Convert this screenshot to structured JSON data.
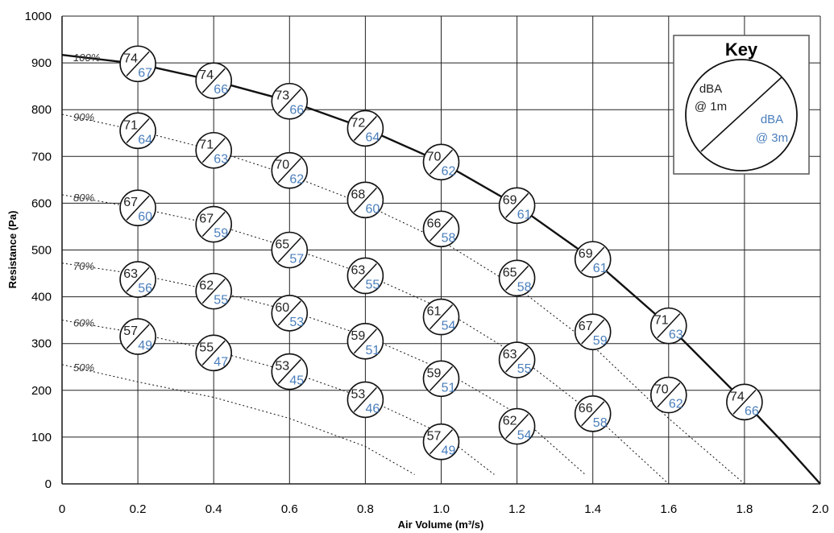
{
  "chart_data": {
    "type": "line",
    "xlabel": "Air Volume (m³/s)",
    "ylabel": "Resistance (Pa)",
    "xlim": [
      0,
      2.0
    ],
    "ylim": [
      0,
      1000
    ],
    "x_ticks": [
      "0",
      "0.2",
      "0.4",
      "0.6",
      "0.8",
      "1.0",
      "1.2",
      "1.4",
      "1.6",
      "1.8",
      "2.0"
    ],
    "y_ticks": [
      "0",
      "100",
      "200",
      "300",
      "400",
      "500",
      "600",
      "700",
      "800",
      "900",
      "1000"
    ],
    "grid": true,
    "series": [
      {
        "name": "100%",
        "style": "solid",
        "x": [
          0,
          0.2,
          0.4,
          0.6,
          0.8,
          1.0,
          1.2,
          1.4,
          1.6,
          1.8,
          1.9,
          2.0
        ],
        "y": [
          917,
          898,
          862,
          818,
          760,
          688,
          595,
          480,
          338,
          175,
          90,
          0
        ]
      },
      {
        "name": "90%",
        "style": "dotted",
        "x": [
          0,
          0.2,
          0.4,
          0.6,
          0.8,
          1.0,
          1.2,
          1.4,
          1.6,
          1.8
        ],
        "y": [
          790,
          755,
          713,
          660,
          597,
          520,
          420,
          295,
          140,
          0
        ]
      },
      {
        "name": "80%",
        "style": "dotted",
        "x": [
          0,
          0.2,
          0.4,
          0.6,
          0.8,
          1.0,
          1.2,
          1.4,
          1.6
        ],
        "y": [
          618,
          590,
          555,
          505,
          448,
          375,
          275,
          150,
          0
        ]
      },
      {
        "name": "70%",
        "style": "dotted",
        "x": [
          0,
          0.2,
          0.4,
          0.6,
          0.8,
          1.0,
          1.2,
          1.38
        ],
        "y": [
          472,
          448,
          413,
          370,
          316,
          245,
          150,
          20
        ]
      },
      {
        "name": "60%",
        "style": "dotted",
        "x": [
          0,
          0.2,
          0.4,
          0.6,
          0.8,
          1.0,
          1.14
        ],
        "y": [
          350,
          322,
          285,
          240,
          183,
          108,
          20
        ]
      },
      {
        "name": "50%",
        "style": "dotted",
        "x": [
          0,
          0.2,
          0.4,
          0.6,
          0.8,
          0.93
        ],
        "y": [
          255,
          218,
          185,
          140,
          80,
          20
        ]
      }
    ],
    "points": [
      {
        "x": 0.2,
        "y": 898,
        "top": "74",
        "bottom": "67"
      },
      {
        "x": 0.4,
        "y": 862,
        "top": "74",
        "bottom": "66"
      },
      {
        "x": 0.6,
        "y": 818,
        "top": "73",
        "bottom": "66"
      },
      {
        "x": 0.8,
        "y": 760,
        "top": "72",
        "bottom": "64"
      },
      {
        "x": 1.0,
        "y": 688,
        "top": "70",
        "bottom": "62"
      },
      {
        "x": 1.2,
        "y": 595,
        "top": "69",
        "bottom": "61"
      },
      {
        "x": 1.4,
        "y": 480,
        "top": "69",
        "bottom": "61"
      },
      {
        "x": 1.6,
        "y": 338,
        "top": "71",
        "bottom": "63"
      },
      {
        "x": 1.8,
        "y": 175,
        "top": "74",
        "bottom": "66"
      },
      {
        "x": 0.2,
        "y": 755,
        "top": "71",
        "bottom": "64"
      },
      {
        "x": 0.4,
        "y": 713,
        "top": "71",
        "bottom": "63"
      },
      {
        "x": 0.6,
        "y": 670,
        "top": "70",
        "bottom": "62"
      },
      {
        "x": 0.8,
        "y": 607,
        "top": "68",
        "bottom": "60"
      },
      {
        "x": 1.0,
        "y": 545,
        "top": "66",
        "bottom": "58"
      },
      {
        "x": 1.2,
        "y": 440,
        "top": "65",
        "bottom": "58"
      },
      {
        "x": 1.4,
        "y": 325,
        "top": "67",
        "bottom": "59"
      },
      {
        "x": 1.6,
        "y": 190,
        "top": "70",
        "bottom": "62"
      },
      {
        "x": 0.2,
        "y": 590,
        "top": "67",
        "bottom": "60"
      },
      {
        "x": 0.4,
        "y": 555,
        "top": "67",
        "bottom": "59"
      },
      {
        "x": 0.6,
        "y": 500,
        "top": "65",
        "bottom": "57"
      },
      {
        "x": 0.8,
        "y": 445,
        "top": "63",
        "bottom": "55"
      },
      {
        "x": 1.0,
        "y": 357,
        "top": "61",
        "bottom": "54"
      },
      {
        "x": 1.2,
        "y": 265,
        "top": "63",
        "bottom": "55"
      },
      {
        "x": 1.4,
        "y": 150,
        "top": "66",
        "bottom": "58"
      },
      {
        "x": 1.2,
        "y": 123,
        "top": "62",
        "bottom": "54"
      },
      {
        "x": 0.2,
        "y": 437,
        "top": "63",
        "bottom": "56"
      },
      {
        "x": 0.4,
        "y": 412,
        "top": "62",
        "bottom": "55"
      },
      {
        "x": 0.6,
        "y": 365,
        "top": "60",
        "bottom": "53"
      },
      {
        "x": 0.8,
        "y": 305,
        "top": "59",
        "bottom": "51"
      },
      {
        "x": 1.0,
        "y": 225,
        "top": "59",
        "bottom": "51"
      },
      {
        "x": 0.2,
        "y": 315,
        "top": "57",
        "bottom": "49"
      },
      {
        "x": 0.4,
        "y": 280,
        "top": "55",
        "bottom": "47"
      },
      {
        "x": 0.6,
        "y": 240,
        "top": "53",
        "bottom": "45"
      },
      {
        "x": 0.8,
        "y": 180,
        "top": "53",
        "bottom": "46"
      },
      {
        "x": 1.0,
        "y": 90,
        "top": "57",
        "bottom": "49"
      }
    ],
    "key": {
      "title": "Key",
      "top_line1": "dBA",
      "top_line2": "@ 1m",
      "bottom_line1": "dBA",
      "bottom_line2": "@ 3m"
    }
  }
}
